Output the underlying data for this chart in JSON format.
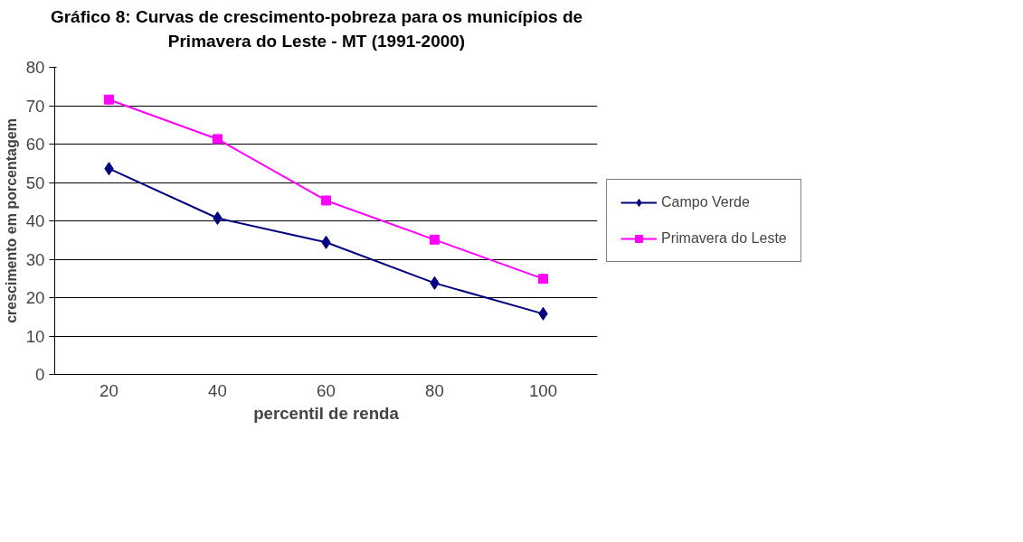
{
  "chart_data": {
    "type": "line",
    "title": "Gráfico 8: Curvas de crescimento-pobreza para os municípios de\nPrimavera do Leste - MT (1991-2000)",
    "xlabel": "percentil de renda",
    "ylabel": "crescimento em porcentagem",
    "categories": [
      "20",
      "40",
      "60",
      "80",
      "100"
    ],
    "series": [
      {
        "name": "Campo Verde",
        "color": "#000080",
        "marker": "diamond",
        "values": [
          53.6,
          40.7,
          34.4,
          23.8,
          15.8
        ]
      },
      {
        "name": "Primavera do Leste",
        "color": "#ff00ff",
        "marker": "square",
        "values": [
          71.6,
          61.3,
          45.3,
          35.1,
          24.9
        ]
      }
    ],
    "ylim": [
      0,
      80
    ],
    "yticks": [
      0,
      10,
      20,
      30,
      40,
      50,
      60,
      70,
      80
    ],
    "grid": "y",
    "legend": "right"
  }
}
